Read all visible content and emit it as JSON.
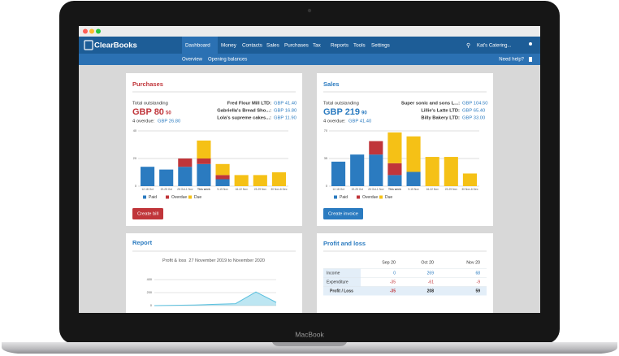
{
  "nav": {
    "brand": "ClearBooks",
    "menu": [
      "Dashboard",
      "Money",
      "Contacts",
      "Sales",
      "Purchases",
      "Tax",
      "Reports",
      "Tools",
      "Settings"
    ],
    "active": 0,
    "account": "Kat's Catering..."
  },
  "subnav": {
    "items": [
      "Overview",
      "Opening balances"
    ],
    "help": "Need help?"
  },
  "purchases": {
    "title": "Purchases",
    "total_label": "Total outstanding",
    "total": "GBP 80",
    "total_pence": "50",
    "overdue_label": "4 overdue:",
    "overdue_amount": "GBP 26.80",
    "contacts": [
      {
        "name": "Fred Flour Mill LTD:",
        "amount": "GBP 41.40"
      },
      {
        "name": "Gabriella's Bread Sho...:",
        "amount": "GBP 16.80"
      },
      {
        "name": "Lola's supreme cakes...:",
        "amount": "GBP 11.90"
      }
    ],
    "button": "Create bill",
    "chart_data": {
      "type": "bar",
      "stacked": true,
      "categories": [
        "12-18 Oct",
        "19-25 Oct",
        "26 Oct-1 Nov",
        "This week",
        "9-15 Nov",
        "16-22 Nov",
        "23-29 Nov",
        "30 Nov-6 Dec"
      ],
      "series": [
        {
          "name": "Paid",
          "color": "#2b7bc0",
          "values": [
            14,
            12,
            14,
            16,
            5,
            0,
            0,
            0
          ]
        },
        {
          "name": "Overdue",
          "color": "#c0353a",
          "values": [
            0,
            0,
            6,
            4,
            3,
            0,
            0,
            0
          ]
        },
        {
          "name": "Due",
          "color": "#f5c116",
          "values": [
            0,
            0,
            0,
            13,
            8,
            8,
            8,
            10
          ]
        }
      ],
      "ylim": [
        0,
        40
      ],
      "yticks": [
        0,
        20,
        40
      ],
      "grid": true
    }
  },
  "sales": {
    "title": "Sales",
    "total_label": "Total outstanding",
    "total": "GBP 219",
    "total_pence": "90",
    "overdue_label": "4 overdue:",
    "overdue_amount": "GBP 41.40",
    "contacts": [
      {
        "name": "Super sonic and sons L...:",
        "amount": "GBP 104.50"
      },
      {
        "name": "Lillie's Latte LTD:",
        "amount": "GBP 65.40"
      },
      {
        "name": "Billy Bakery LTD:",
        "amount": "GBP 33.00"
      }
    ],
    "button": "Create invoice",
    "chart_data": {
      "type": "bar",
      "stacked": true,
      "categories": [
        "12-18 Oct",
        "19-25 Oct",
        "26 Oct-1 Nov",
        "This week",
        "9-15 Nov",
        "16-22 Nov",
        "23-29 Nov",
        "30 Nov-6 Dec"
      ],
      "series": [
        {
          "name": "Paid",
          "color": "#2b7bc0",
          "values": [
            31,
            40,
            40,
            14,
            18,
            0,
            0,
            0
          ]
        },
        {
          "name": "Overdue",
          "color": "#c0353a",
          "values": [
            0,
            0,
            17,
            15,
            0,
            0,
            0,
            0
          ]
        },
        {
          "name": "Due",
          "color": "#f5c116",
          "values": [
            0,
            0,
            0,
            39,
            45,
            37,
            37,
            16
          ]
        }
      ],
      "ylim": [
        0,
        70
      ],
      "yticks": [
        0,
        35,
        70
      ],
      "grid": true
    }
  },
  "report": {
    "title": "Report",
    "chart_title": "Profit & loss",
    "chart_subtitle": "27 November 2019 to November 2020",
    "chart_data": {
      "type": "area",
      "values": [
        0,
        5,
        10,
        20,
        30,
        210,
        50
      ],
      "color": "#5bc0de",
      "ylim": [
        0,
        400
      ],
      "yticks": [
        0,
        200,
        400
      ],
      "grid": true
    }
  },
  "profit_loss": {
    "title": "Profit and loss",
    "table": {
      "columns": [
        "Sep 20",
        "Oct 20",
        "Nov 20"
      ],
      "rows": [
        {
          "label": "Income",
          "values": [
            0,
            269,
            68
          ],
          "color": "#2b7bc0"
        },
        {
          "label": "Expenditure",
          "values": [
            -35,
            -61,
            -9
          ],
          "color": "#c0353a"
        },
        {
          "label": "Profit / Loss",
          "values": [
            -35,
            208,
            59
          ],
          "color": "#222222",
          "bold": true
        }
      ]
    }
  },
  "device": "MacBook"
}
